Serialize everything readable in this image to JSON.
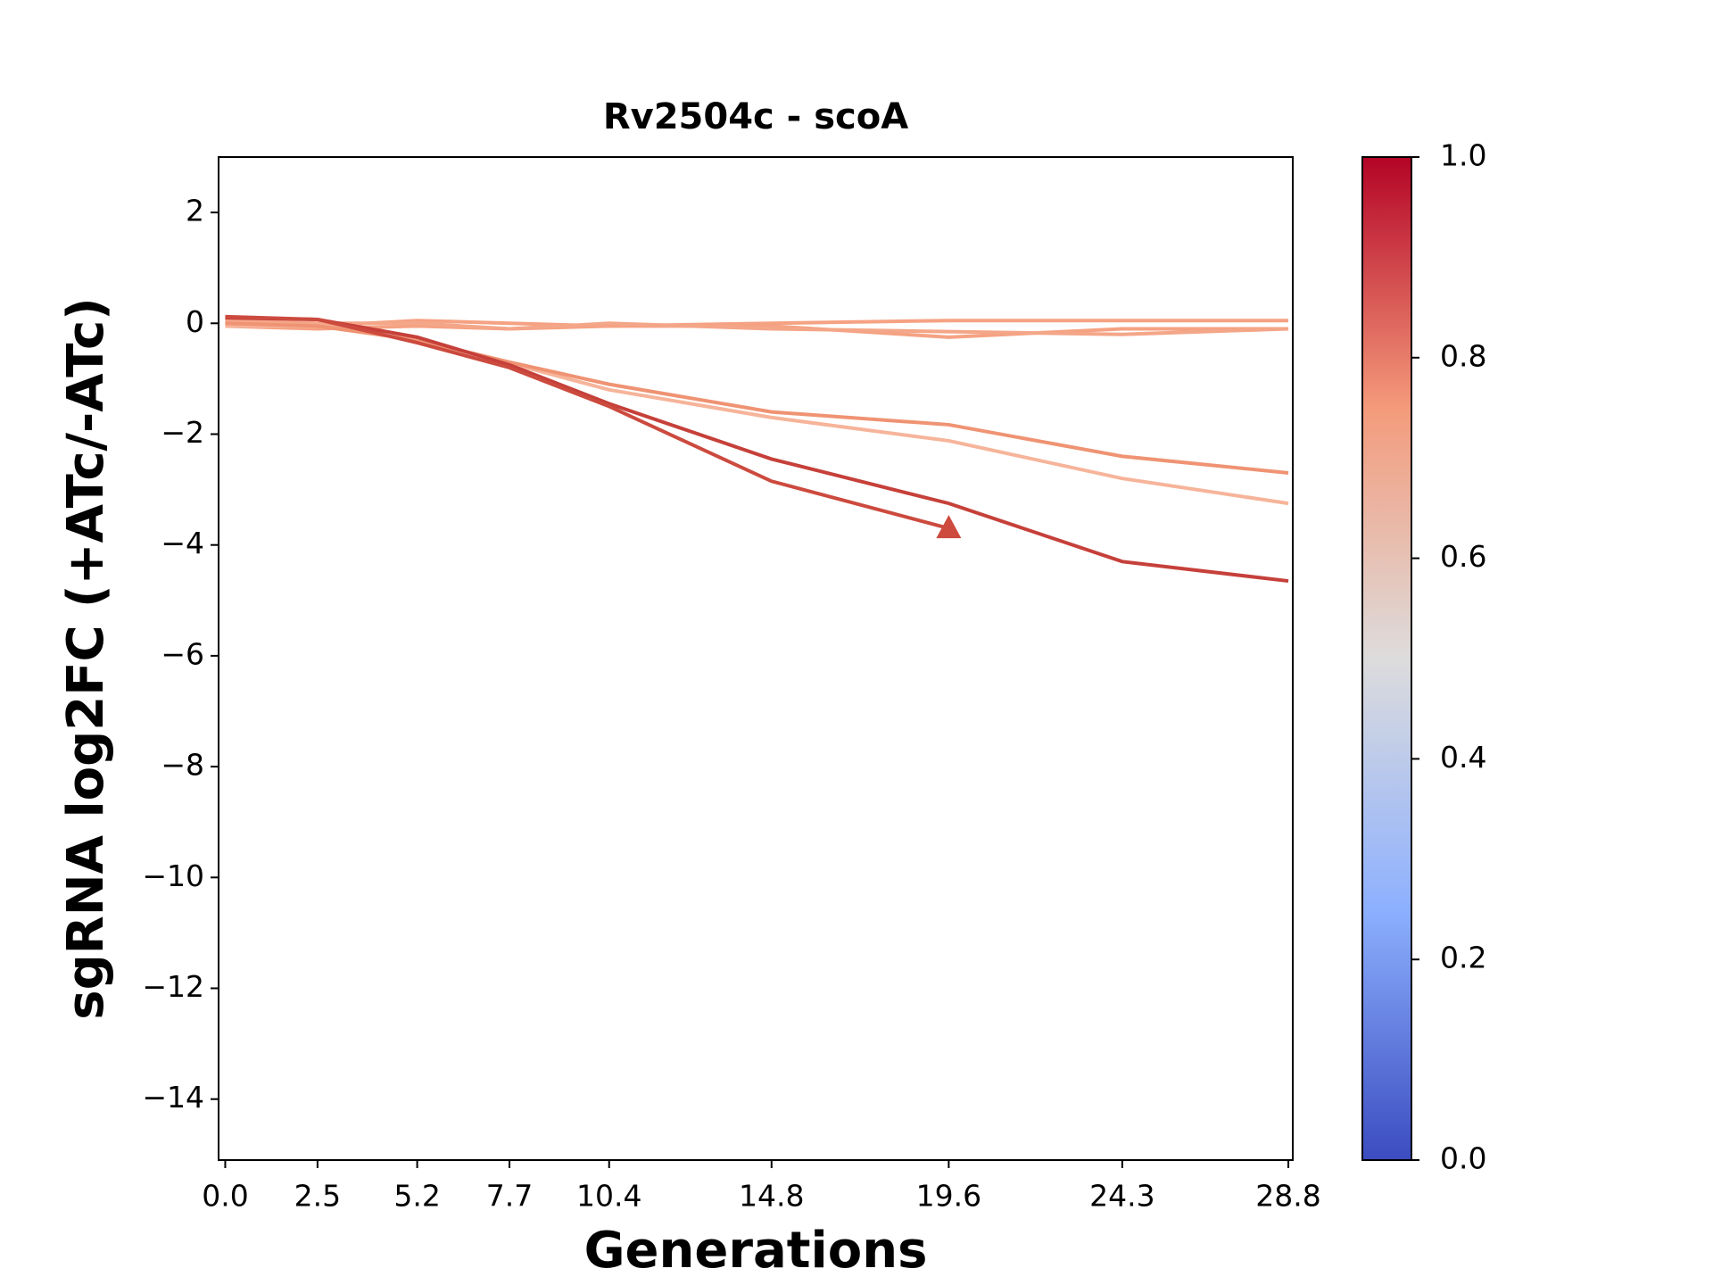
{
  "chart_data": {
    "type": "line",
    "title": "Rv2504c - scoA",
    "x_label": "Generations",
    "y_label": "sgRNA log2FC (+ATc/-ATc)",
    "x": [
      0,
      2.5,
      5.2,
      7.7,
      10.4,
      14.8,
      19.6,
      24.3,
      28.8
    ],
    "xlim": [
      -0.18,
      28.92
    ],
    "xticks": [
      {
        "value": 0,
        "label": "0.0"
      },
      2.5,
      5.2,
      7.7,
      10.4,
      14.8,
      19.6,
      24.3,
      28.8
    ],
    "ylim": [
      -15.1,
      3
    ],
    "yticks": [
      2,
      0,
      {
        "value": -2,
        "label": "−2"
      },
      {
        "value": -4,
        "label": "−4"
      },
      {
        "value": -6,
        "label": "−6"
      },
      {
        "value": -8,
        "label": "−8"
      },
      {
        "value": -10,
        "label": "−10"
      },
      {
        "value": -12,
        "label": "−12"
      },
      {
        "value": -14,
        "label": "−14"
      }
    ],
    "series": [
      {
        "color": "#f5a283",
        "values": [
          0,
          -0.05,
          0.05,
          0,
          -0.05,
          0,
          0.05,
          0.05,
          0.05
        ]
      },
      {
        "color": "#f5a283",
        "values": [
          -0.05,
          -0.1,
          -0.05,
          -0.1,
          -0.05,
          -0.05,
          -0.25,
          -0.1,
          -0.1
        ]
      },
      {
        "color": "#f4a688",
        "values": [
          0.05,
          0,
          0,
          -0.1,
          0,
          -0.1,
          -0.15,
          -0.2,
          -0.1
        ]
      },
      {
        "color": "#f6b49a",
        "values": [
          -0.05,
          -0.05,
          -0.3,
          -0.72,
          -1.2,
          -1.7,
          -2.12,
          -2.8,
          -3.25
        ]
      },
      {
        "color": "#ef9373",
        "values": [
          0,
          -0.05,
          -0.3,
          -0.7,
          -1.1,
          -1.6,
          -1.83,
          -2.4,
          -2.7
        ]
      },
      {
        "color": "#c6403a",
        "values": [
          0.1,
          0.07,
          -0.25,
          -0.75,
          -1.45,
          -2.45,
          -3.25,
          -4.3,
          -4.65
        ]
      },
      {
        "color": "#cc4a3e",
        "marker": "^",
        "values": [
          0.12,
          0.07,
          -0.35,
          -0.8,
          -1.5,
          -2.85,
          -3.7,
          null,
          null
        ]
      }
    ],
    "colorbar": {
      "clim": [
        0,
        1
      ],
      "ticks": [
        {
          "value": 0,
          "label": "0.0"
        },
        0.2,
        0.4,
        0.6,
        0.8,
        {
          "value": 1,
          "label": "1.0"
        }
      ]
    }
  }
}
